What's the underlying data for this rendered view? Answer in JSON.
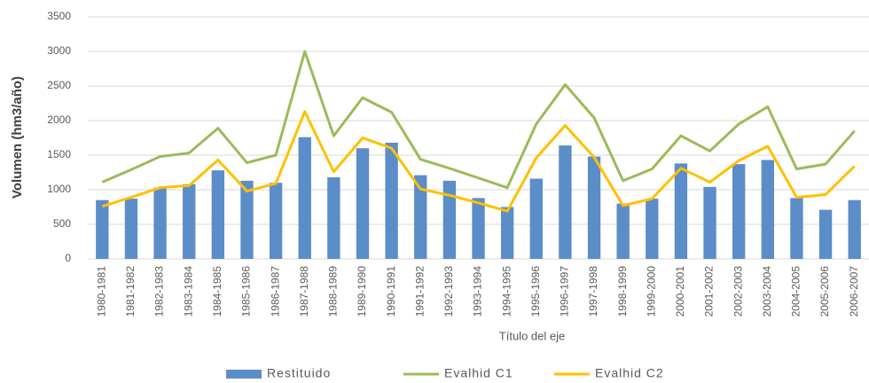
{
  "chart_data": {
    "type": "combo",
    "categories": [
      "1980-1981",
      "1981-1982",
      "1982-1983",
      "1983-1984",
      "1984-1985",
      "1985-1986",
      "1986-1987",
      "1987-1988",
      "1988-1989",
      "1989-1990",
      "1990-1991",
      "1991-1992",
      "1992-1993",
      "1993-1994",
      "1994-1995",
      "1995-1996",
      "1996-1997",
      "1997-1998",
      "1998-1999",
      "1999-2000",
      "2000-2001",
      "2001-2002",
      "2002-2003",
      "2003-2004",
      "2004-2005",
      "2005-2006",
      "2006-2007"
    ],
    "series": [
      {
        "name": "Restituido",
        "type": "bar",
        "color": "#5b8dc8",
        "values": [
          850,
          870,
          1030,
          1080,
          1280,
          1130,
          1100,
          1760,
          1180,
          1600,
          1680,
          1210,
          1130,
          880,
          750,
          1160,
          1640,
          1480,
          800,
          870,
          1380,
          1040,
          1370,
          1430,
          880,
          710,
          850
        ]
      },
      {
        "name": "Evalhid C1",
        "type": "line",
        "color": "#9bbb59",
        "values": [
          1110,
          1290,
          1480,
          1530,
          1890,
          1390,
          1500,
          3000,
          1780,
          2330,
          2120,
          1440,
          1310,
          1170,
          1030,
          1950,
          2520,
          2040,
          1130,
          1300,
          1780,
          1560,
          1950,
          2200,
          1300,
          1370,
          1850
        ]
      },
      {
        "name": "Evalhid C2",
        "type": "line",
        "color": "#ffc000",
        "values": [
          760,
          890,
          1030,
          1060,
          1430,
          980,
          1090,
          2130,
          1260,
          1750,
          1600,
          1010,
          920,
          810,
          690,
          1460,
          1930,
          1470,
          770,
          870,
          1310,
          1110,
          1420,
          1630,
          890,
          930,
          1340
        ]
      }
    ],
    "x_label": "Título del eje",
    "y_label": "Volumen (hm3/año)",
    "ylim": [
      0,
      3500
    ],
    "yticks": [
      0,
      500,
      1000,
      1500,
      2000,
      2500,
      3000,
      3500
    ],
    "grid": true,
    "legend": "bottom"
  }
}
